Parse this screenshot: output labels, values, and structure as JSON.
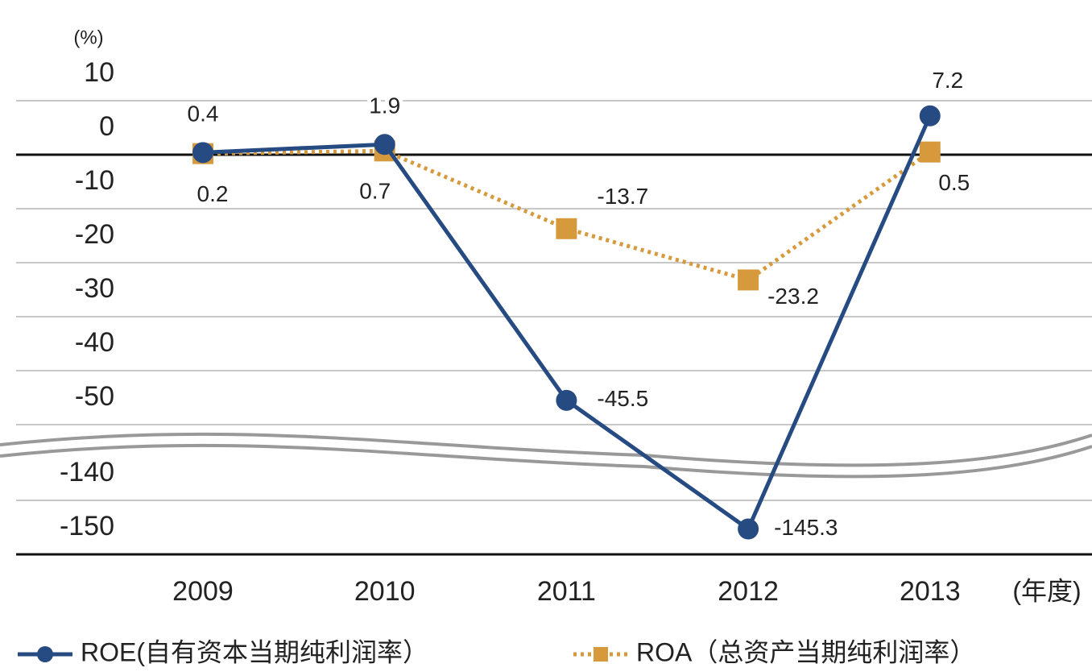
{
  "chart_data": {
    "type": "line",
    "y_unit": "(%)",
    "x_unit": "(年度)",
    "categories": [
      "2009",
      "2010",
      "2011",
      "2012",
      "2013"
    ],
    "series": [
      {
        "name": "ROE(自有资本当期纯利润率）",
        "color": "#264a82",
        "values": [
          0.4,
          1.9,
          -45.5,
          -145.3,
          7.2
        ]
      },
      {
        "name": "ROA（总资产当期纯利润率）",
        "color": "#d69a3c",
        "values": [
          0.2,
          0.7,
          -13.7,
          -23.2,
          0.5
        ]
      }
    ],
    "ylim": [
      -150,
      10
    ],
    "yticks": [
      10,
      0,
      -10,
      -20,
      -30,
      -40,
      -50,
      -140,
      -150
    ],
    "grid": true
  }
}
